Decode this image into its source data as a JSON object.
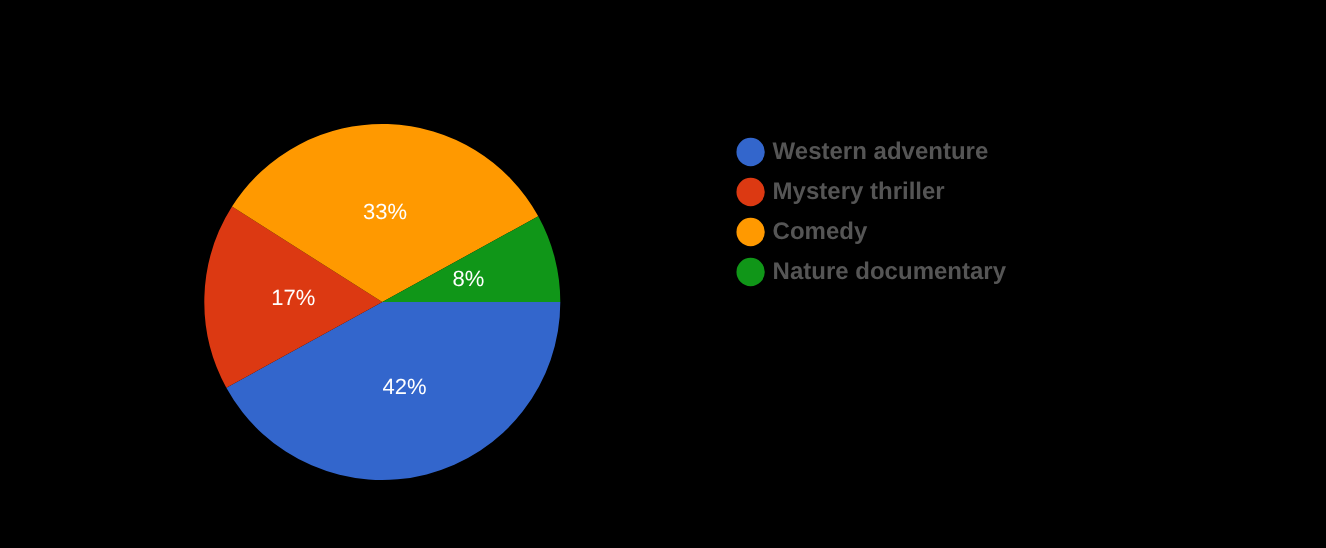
{
  "chart_data": {
    "type": "pie",
    "categories": [
      "Western adventure",
      "Mystery thriller",
      "Comedy",
      "Nature documentary"
    ],
    "values": [
      42,
      17,
      33,
      8
    ],
    "colors": [
      "#3366cc",
      "#dc3912",
      "#ff9900",
      "#109618"
    ],
    "value_labels": [
      "42%",
      "17%",
      "33%",
      "8%"
    ],
    "legend": "right"
  }
}
